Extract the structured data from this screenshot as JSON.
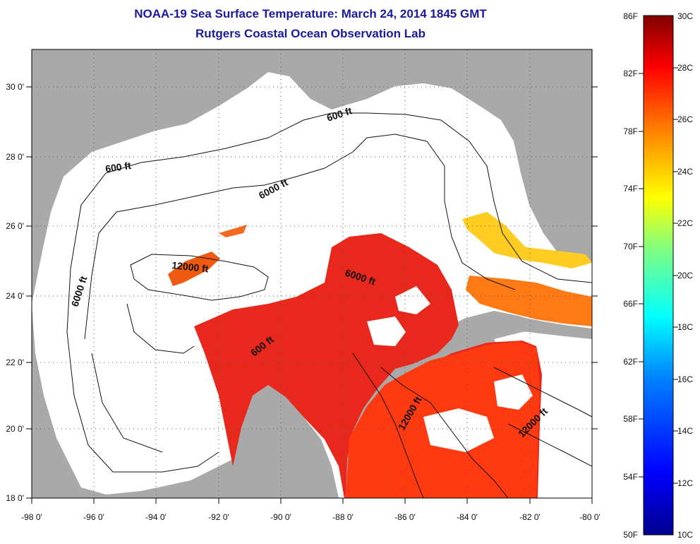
{
  "title": "NOAA-19 Sea Surface Temperature:  March 24, 2014 1845 GMT",
  "subtitle": "Rutgers Coastal Ocean Observation Lab",
  "map": {
    "lon_range": [
      -98,
      -80
    ],
    "lat_range": [
      18,
      31
    ],
    "lon_ticks": [
      "-98 0'",
      "-96 0'",
      "-94 0'",
      "-92 0'",
      "-90 0'",
      "-88 0'",
      "-86 0'",
      "-84 0'",
      "-82 0'",
      "-80 0'"
    ],
    "lat_ticks": [
      "30 0'",
      "28 0'",
      "26 0'",
      "24 0'",
      "22 0'",
      "20 0'",
      "18 0'"
    ],
    "grid": "dotted",
    "land_color": "#a9a9a9",
    "water_color": "#ffffff"
  },
  "contour_labels": [
    {
      "text": "600 ft"
    },
    {
      "text": "600 ft"
    },
    {
      "text": "6000 ft"
    },
    {
      "text": "6000 ft"
    },
    {
      "text": "12000 ft"
    },
    {
      "text": "6000 ft"
    },
    {
      "text": "600 ft"
    },
    {
      "text": "12000 ft"
    },
    {
      "text": "12000 ft"
    }
  ],
  "colorbar": {
    "fahrenheit_labels": [
      "86F",
      "82F",
      "78F",
      "74F",
      "70F",
      "66F",
      "62F",
      "58F",
      "54F",
      "50F"
    ],
    "celsius_labels": [
      "30C",
      "28C",
      "26C",
      "24C",
      "22C",
      "20C",
      "18C",
      "16C",
      "14C",
      "12C",
      "10C"
    ],
    "range_c": [
      10,
      30
    ],
    "colors": [
      "#00008f",
      "#0000ff",
      "#0080ff",
      "#00ffff",
      "#80ff80",
      "#ffff00",
      "#ff8000",
      "#ff0000",
      "#800000"
    ]
  }
}
